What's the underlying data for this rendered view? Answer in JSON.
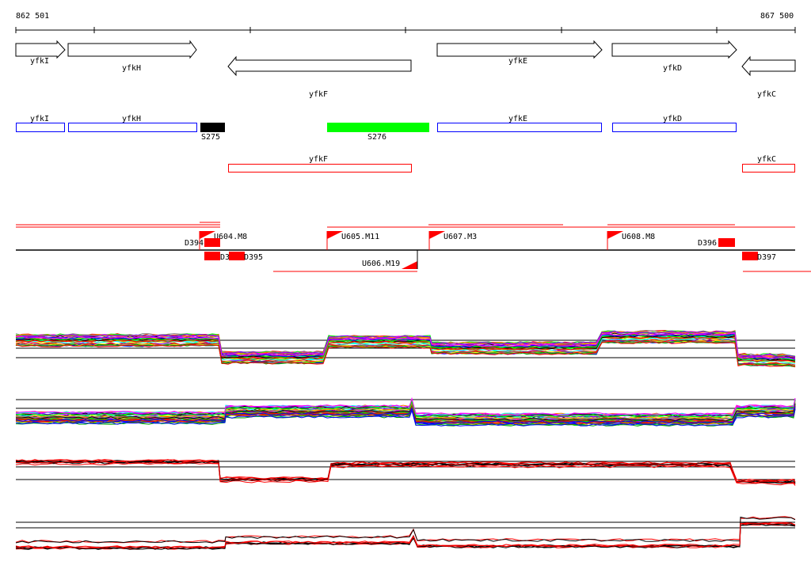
{
  "ruler": {
    "start_label": "862 501",
    "end_label": "867 500"
  },
  "genes": [
    {
      "name": "yfkI",
      "strand": "+"
    },
    {
      "name": "yfkH",
      "strand": "+"
    },
    {
      "name": "yfkF",
      "strand": "-"
    },
    {
      "name": "yfkE",
      "strand": "+"
    },
    {
      "name": "yfkD",
      "strand": "+"
    },
    {
      "name": "yfkC",
      "strand": "-"
    }
  ],
  "features": {
    "forward": [
      {
        "name": "yfkI",
        "color": "#0000ff"
      },
      {
        "name": "yfkH",
        "color": "#0000ff"
      },
      {
        "name": "S275",
        "color": "#000000"
      },
      {
        "name": "S276",
        "color": "#00ff00"
      },
      {
        "name": "yfkE",
        "color": "#0000ff"
      },
      {
        "name": "yfkD",
        "color": "#0000ff"
      }
    ],
    "reverse": [
      {
        "name": "yfkF",
        "color": "#ff0000"
      },
      {
        "name": "yfkC",
        "color": "#ff0000"
      }
    ]
  },
  "segments": {
    "upper": [
      "U604.M8",
      "U605.M11",
      "U607.M3",
      "U608.M8"
    ],
    "lower": [
      "U606.M19"
    ],
    "downshifts": [
      "D394",
      "D3",
      "D395",
      "D396",
      "D397"
    ]
  },
  "colors": {
    "accent": "#ff0000",
    "gene_box": "#0000ff",
    "s276": "#00ff00"
  }
}
